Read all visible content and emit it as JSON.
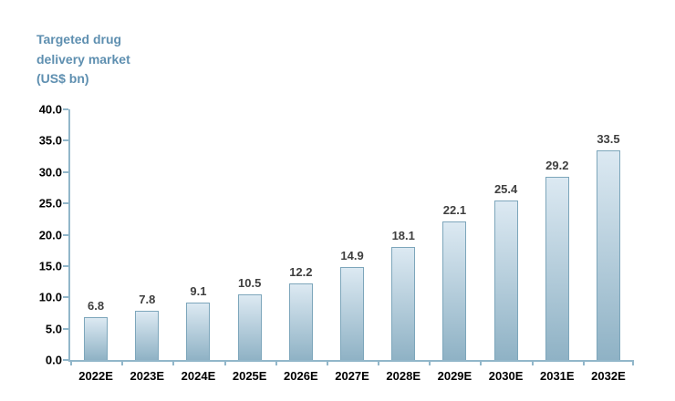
{
  "chart_data": {
    "type": "bar",
    "title": "Targeted drug delivery market (US$ bn)",
    "categories": [
      "2022E",
      "2023E",
      "2024E",
      "2025E",
      "2026E",
      "2027E",
      "2028E",
      "2029E",
      "2030E",
      "2031E",
      "2032E"
    ],
    "values": [
      6.8,
      7.8,
      9.1,
      10.5,
      12.2,
      14.9,
      18.1,
      22.1,
      25.4,
      29.2,
      33.5
    ],
    "value_labels": [
      "6.8",
      "7.8",
      "9.1",
      "10.5",
      "12.2",
      "14.9",
      "18.1",
      "22.1",
      "25.4",
      "29.2",
      "33.5"
    ],
    "xlabel": "",
    "ylabel": "",
    "ylim": [
      0,
      40
    ],
    "y_tick_step": 5,
    "y_tick_labels": [
      "0.0",
      "5.0",
      "10.0",
      "15.0",
      "20.0",
      "25.0",
      "30.0",
      "35.0",
      "40.0"
    ],
    "grid": false,
    "legend_position": "none",
    "data_labels_shown": true,
    "colors": {
      "bar_gradient_top": "#dce9f2",
      "bar_gradient_bottom": "#8fb2c5",
      "bar_border": "#7da6bb",
      "axis_line": "#92b7ca",
      "title_text": "#5e8fb0",
      "axis_label_text": "#000000",
      "value_label_text": "#3f3f3f",
      "background": "#ffffff"
    }
  }
}
